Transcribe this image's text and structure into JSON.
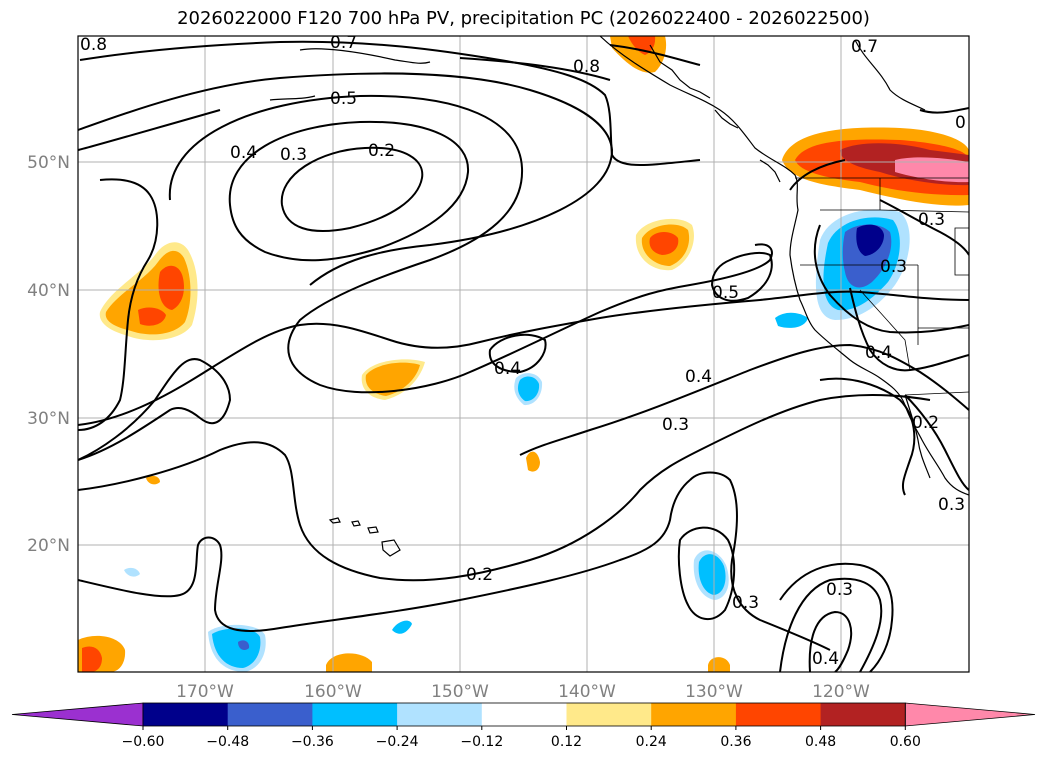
{
  "title": "2026022000 F120 700 hPa PV, precipitation PC (2026022400 - 2026022500)",
  "latitude_labels": [
    "50°N",
    "40°N",
    "30°N",
    "20°N"
  ],
  "longitude_labels": [
    "170°W",
    "160°W",
    "150°W",
    "140°W",
    "130°W",
    "120°W"
  ],
  "contour_labels": [
    "0.8",
    "0.7",
    "0.8",
    "0.7",
    "0.5",
    "0.4",
    "0.3",
    "0.2",
    "0.5",
    "0.4",
    "0.4",
    "0.3",
    "0.3",
    "0.4",
    "0.3",
    "0.2",
    "0.3",
    "0.3",
    "0.4",
    "0.3",
    "0.2",
    "0"
  ],
  "colorbar": {
    "ticks": [
      "−0.60",
      "−0.48",
      "−0.36",
      "−0.24",
      "−0.12",
      "0.12",
      "0.24",
      "0.36",
      "0.48",
      "0.60"
    ],
    "colors": [
      "#9b30d0",
      "#00008b",
      "#3a5fcd",
      "#00bfff",
      "#b0e2ff",
      "#ffffff",
      "#ffe98a",
      "#ffa500",
      "#ff4500",
      "#b22222",
      "#ff88aa"
    ]
  }
}
